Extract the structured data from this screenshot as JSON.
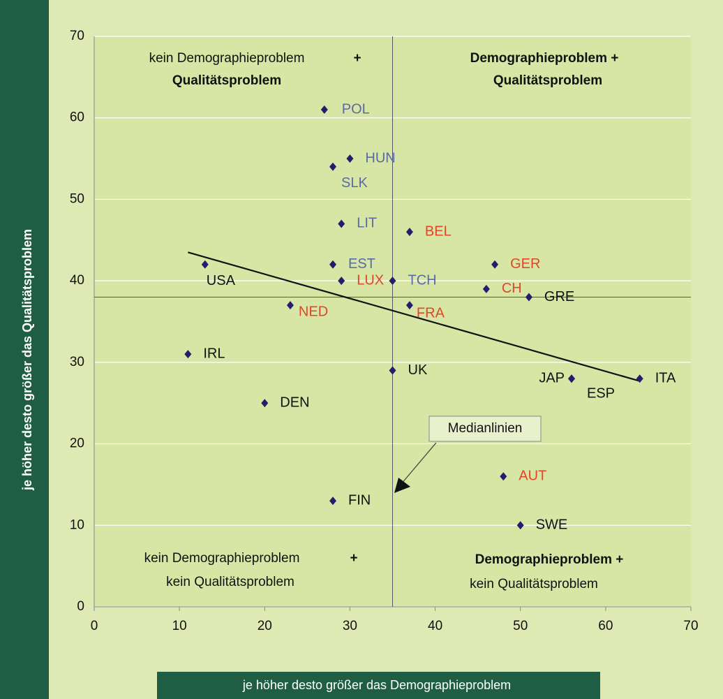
{
  "chart_data": {
    "type": "scatter",
    "xlabel": "je höher desto größer das Demographieproblem",
    "ylabel": "je höher desto größer das Qualitätsproblem",
    "xlim": [
      0,
      70
    ],
    "ylim": [
      0,
      70
    ],
    "xticks": [
      0,
      10,
      20,
      30,
      40,
      50,
      60,
      70
    ],
    "yticks": [
      0,
      10,
      20,
      30,
      40,
      50,
      60,
      70
    ],
    "grid": true,
    "marker_color": "#2a1a6e",
    "points": [
      {
        "label": "POL",
        "x": 27,
        "y": 61,
        "color": "#5a6aa8"
      },
      {
        "label": "HUN",
        "x": 30,
        "y": 55,
        "color": "#5a6aa8"
      },
      {
        "label": "SLK",
        "x": 28,
        "y": 54,
        "color": "#5a6aa8"
      },
      {
        "label": "LIT",
        "x": 29,
        "y": 47,
        "color": "#5a6aa8"
      },
      {
        "label": "BEL",
        "x": 37,
        "y": 46,
        "color": "#e0452a"
      },
      {
        "label": "EST",
        "x": 28,
        "y": 42,
        "color": "#5a6aa8"
      },
      {
        "label": "USA",
        "x": 13,
        "y": 42,
        "color": "#111111"
      },
      {
        "label": "GER",
        "x": 47,
        "y": 42,
        "color": "#e0452a"
      },
      {
        "label": "LUX",
        "x": 29,
        "y": 40,
        "color": "#e0452a"
      },
      {
        "label": "TCH",
        "x": 35,
        "y": 40,
        "color": "#5a6aa8"
      },
      {
        "label": "CH",
        "x": 46,
        "y": 39,
        "color": "#e0452a"
      },
      {
        "label": "GRE",
        "x": 51,
        "y": 38,
        "color": "#111111"
      },
      {
        "label": "NED",
        "x": 23,
        "y": 37,
        "color": "#e0452a"
      },
      {
        "label": "FRA",
        "x": 37,
        "y": 37,
        "color": "#e0452a"
      },
      {
        "label": "IRL",
        "x": 11,
        "y": 31,
        "color": "#111111"
      },
      {
        "label": "UK",
        "x": 35,
        "y": 29,
        "color": "#111111"
      },
      {
        "label": "JAP",
        "x": 56,
        "y": 28,
        "color": "#111111"
      },
      {
        "label": "ESP",
        "x": 56,
        "y": 28,
        "color": "#111111"
      },
      {
        "label": "ITA",
        "x": 64,
        "y": 28,
        "color": "#111111"
      },
      {
        "label": "DEN",
        "x": 20,
        "y": 25,
        "color": "#111111"
      },
      {
        "label": "AUT",
        "x": 48,
        "y": 16,
        "color": "#e0452a"
      },
      {
        "label": "FIN",
        "x": 28,
        "y": 13,
        "color": "#111111"
      },
      {
        "label": "SWE",
        "x": 50,
        "y": 10,
        "color": "#111111"
      }
    ],
    "trendline": {
      "x": [
        11,
        64
      ],
      "y": [
        43.5,
        27.7
      ]
    },
    "medians": {
      "x": 35,
      "y": 38,
      "label": "Medianlinien"
    },
    "annotations": {
      "top_left": [
        "kein Demographieproblem",
        "+",
        "Qualitätsproblem"
      ],
      "top_right": [
        "Demographieproblem +",
        "Qualitätsproblem"
      ],
      "bottom_left": [
        "kein Demographieproblem",
        "+",
        "kein Qualitätsproblem"
      ],
      "bottom_right": [
        "Demographieproblem +",
        "kein Qualitätsproblem"
      ]
    }
  }
}
